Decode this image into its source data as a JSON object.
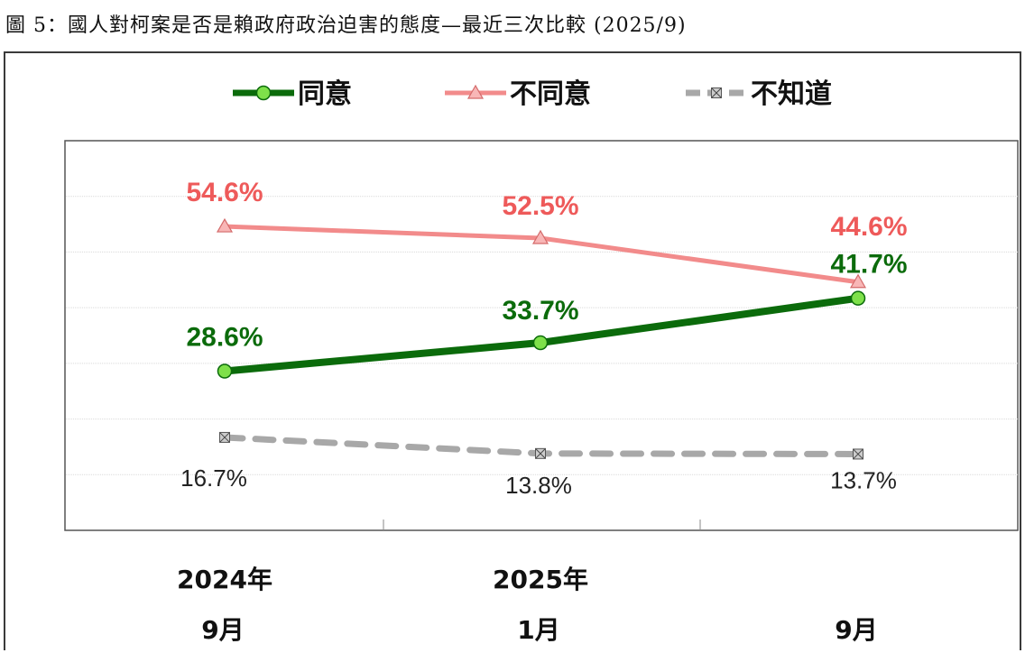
{
  "title": "圖 5：國人對柯案是否是賴政府政治迫害的態度—最近三次比較 (2025/9)",
  "colors": {
    "agree": "#0b6b0b",
    "agree_marker": "#7ee04a",
    "disagree": "#f28b8b",
    "disagree_marker": "#f8b6b6",
    "unknown": "#a8a8a8",
    "unknown_marker": "#cccccc"
  },
  "chart_data": {
    "type": "line",
    "categories": [
      {
        "line1": "2024年",
        "line2": "9月"
      },
      {
        "line1": "2025年",
        "line2": "1月"
      },
      {
        "line1": "",
        "line2": "9月"
      }
    ],
    "ylim": [
      0,
      70
    ],
    "grid": true,
    "legend_position": "top",
    "series": [
      {
        "key": "agree",
        "name": "同意",
        "values": [
          28.6,
          33.7,
          41.7
        ],
        "labels": [
          "28.6%",
          "33.7%",
          "41.7%"
        ],
        "marker": "circle",
        "dashed": false
      },
      {
        "key": "disagree",
        "name": "不同意",
        "values": [
          54.6,
          52.5,
          44.6
        ],
        "labels": [
          "54.6%",
          "52.5%",
          "44.6%"
        ],
        "marker": "triangle",
        "dashed": false
      },
      {
        "key": "unknown",
        "name": "不知道",
        "values": [
          16.7,
          13.8,
          13.7
        ],
        "labels": [
          "16.7%",
          "13.8%",
          "13.7%"
        ],
        "marker": "square-x",
        "dashed": true
      }
    ]
  }
}
